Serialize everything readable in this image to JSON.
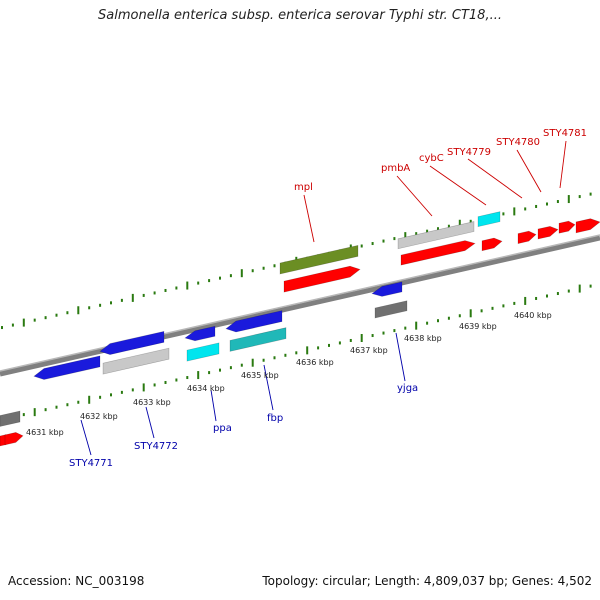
{
  "header": {
    "title": "Salmonella enterica subsp. enterica serovar Typhi str. CT18,..."
  },
  "footer": {
    "accession": "Accession: NC_003198",
    "topology": "Topology: circular; Length: 4,809,037 bp; Genes: 4,502"
  },
  "scale_labels": [
    "4631 kbp",
    "4632 kbp",
    "4633 kbp",
    "4634 kbp",
    "4635 kbp",
    "4636 kbp",
    "4637 kbp",
    "4638 kbp",
    "4639 kbp",
    "4640 kbp"
  ],
  "forward_genes": [
    "mpl",
    "pmbA",
    "cybC",
    "STY4779",
    "STY4780",
    "STY4781"
  ],
  "reverse_genes": [
    "STY4771",
    "STY4772",
    "ppa",
    "fbp",
    "yjga"
  ],
  "colors": {
    "forward_label": "#cc0000",
    "reverse_label": "#0000aa",
    "backbone": "#808080",
    "tick": "#2a7a10",
    "gene_red": "#ff0000",
    "gene_blue": "#1a1adc",
    "gene_cyan": "#00e5ee",
    "gene_teal": "#20b8b8",
    "gene_grey": "#c8c8c8",
    "gene_darkgrey": "#707070",
    "gene_olive": "#6b8e23"
  }
}
